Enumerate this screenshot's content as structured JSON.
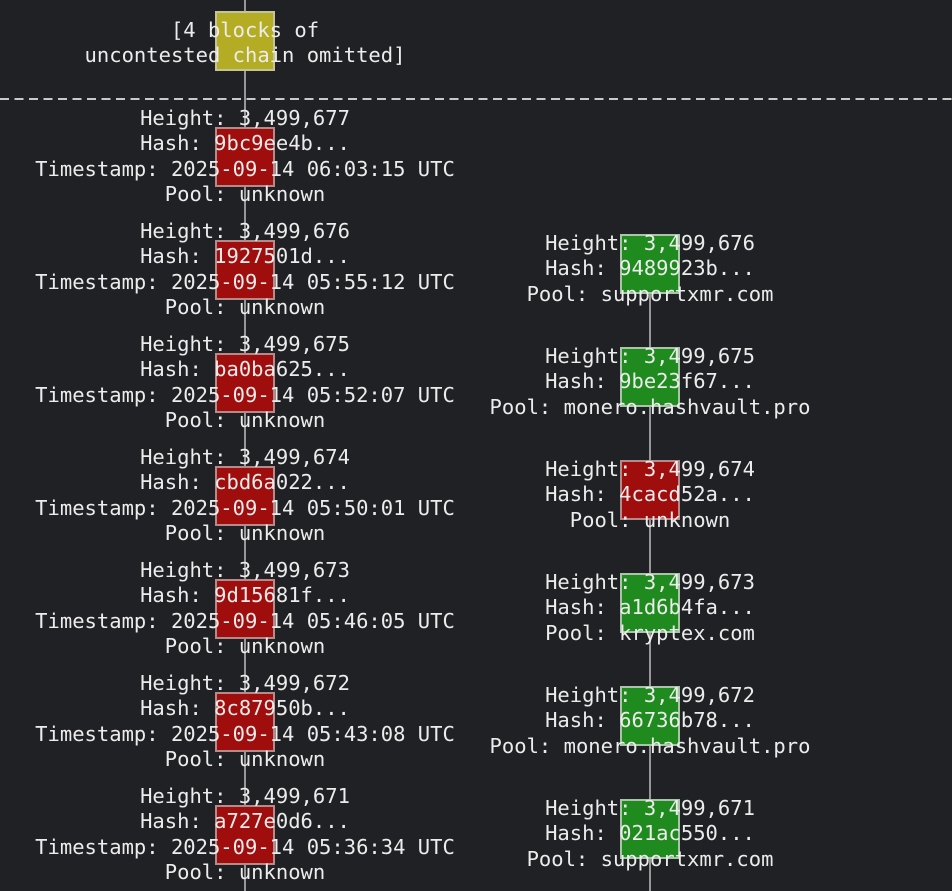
{
  "colors": {
    "background": "#1f2124",
    "text": "#ececec",
    "chain_line": "#979797",
    "divider_dash": "#c9c9c9",
    "omitted_block_fill": "#b4ac22",
    "unknown_pool_block_fill": "#a00d0d",
    "known_pool_block_fill": "#1f8b1f"
  },
  "top_annotation": {
    "line1": "[4 blocks of",
    "line2": "uncontested chain omitted]",
    "block_color": "yellow"
  },
  "labels": {
    "height": "Height:",
    "hash": "Hash:",
    "timestamp": "Timestamp:",
    "pool": "Pool:"
  },
  "left_chain": {
    "blocks": [
      {
        "height": "3,499,677",
        "hash": "9bc9ee4b...",
        "timestamp": "2025-09-14 06:03:15 UTC",
        "pool": "unknown",
        "color": "red"
      },
      {
        "height": "3,499,676",
        "hash": "1927501d...",
        "timestamp": "2025-09-14 05:55:12 UTC",
        "pool": "unknown",
        "color": "red"
      },
      {
        "height": "3,499,675",
        "hash": "ba0ba625...",
        "timestamp": "2025-09-14 05:52:07 UTC",
        "pool": "unknown",
        "color": "red"
      },
      {
        "height": "3,499,674",
        "hash": "cbd6a022...",
        "timestamp": "2025-09-14 05:50:01 UTC",
        "pool": "unknown",
        "color": "red"
      },
      {
        "height": "3,499,673",
        "hash": "9d15681f...",
        "timestamp": "2025-09-14 05:46:05 UTC",
        "pool": "unknown",
        "color": "red"
      },
      {
        "height": "3,499,672",
        "hash": "8c87950b...",
        "timestamp": "2025-09-14 05:43:08 UTC",
        "pool": "unknown",
        "color": "red"
      },
      {
        "height": "3,499,671",
        "hash": "a727e0d6...",
        "timestamp": "2025-09-14 05:36:34 UTC",
        "pool": "unknown",
        "color": "red"
      }
    ]
  },
  "right_chain": {
    "blocks": [
      {
        "height": "3,499,676",
        "hash": "9489923b...",
        "pool": "supportxmr.com",
        "color": "green"
      },
      {
        "height": "3,499,675",
        "hash": "9be23f67...",
        "pool": "monero.hashvault.pro",
        "color": "green"
      },
      {
        "height": "3,499,674",
        "hash": "4cacd52a...",
        "pool": "unknown",
        "color": "red"
      },
      {
        "height": "3,499,673",
        "hash": "a1d6b4fa...",
        "pool": "kryptex.com",
        "color": "green"
      },
      {
        "height": "3,499,672",
        "hash": "66736b78...",
        "pool": "monero.hashvault.pro",
        "color": "green"
      },
      {
        "height": "3,499,671",
        "hash": "021ac550...",
        "pool": "supportxmr.com",
        "color": "green"
      }
    ]
  }
}
